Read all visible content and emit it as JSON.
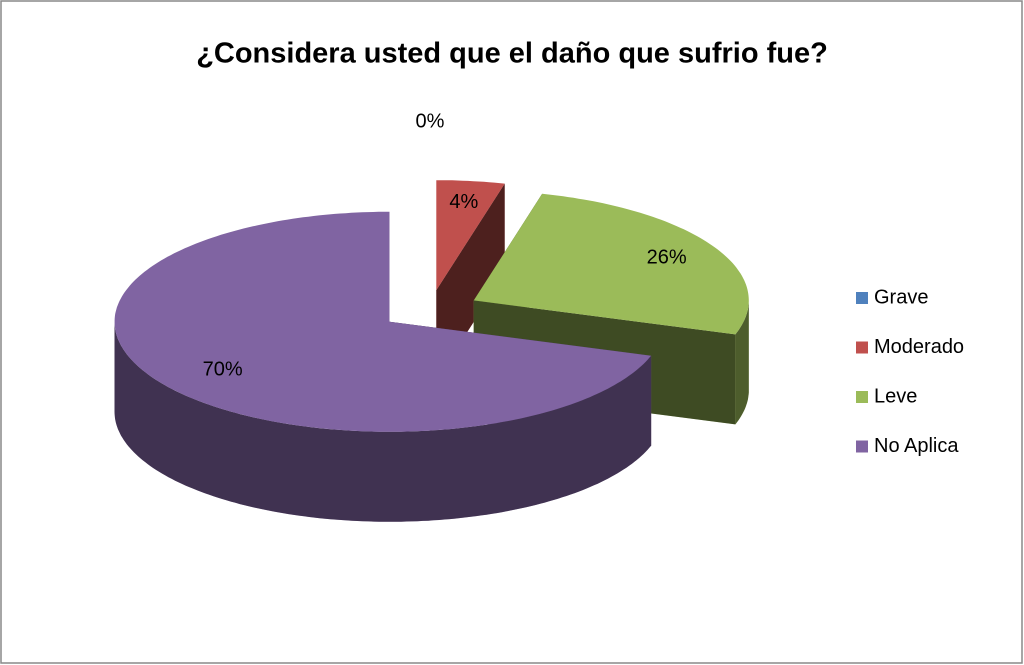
{
  "chart_data": {
    "type": "pie",
    "title": "¿Considera usted que el daño que sufrio fue?",
    "categories": [
      "Grave",
      "Moderado",
      "Leve",
      "No Aplica"
    ],
    "values": [
      0,
      4,
      26,
      70
    ],
    "value_labels": [
      "0%",
      "4%",
      "26%",
      "70%"
    ],
    "colors": [
      "#4f81bd",
      "#c0504d",
      "#9bbb59",
      "#8064a2"
    ],
    "legend": "right"
  }
}
